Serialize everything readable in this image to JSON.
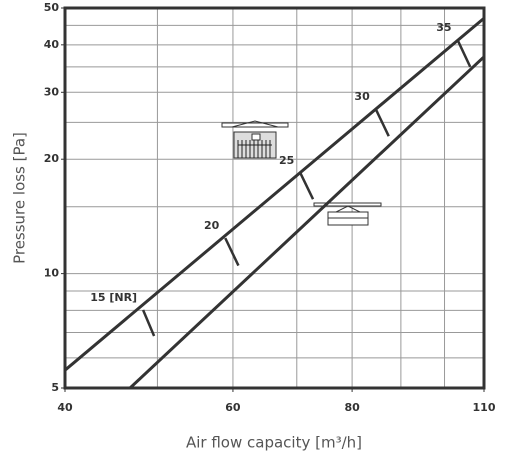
{
  "chart_data": {
    "type": "line",
    "x_label": "Air flow capacity  [m³/h]",
    "y_label": "Pressure loss [Pa]",
    "log_x": true,
    "log_y": true,
    "xlim": [
      40,
      110
    ],
    "ylim": [
      5,
      50
    ],
    "xticks": [
      40,
      60,
      80,
      110
    ],
    "yticks": [
      5,
      10,
      20,
      30,
      40,
      50
    ],
    "xgrid": [
      50,
      60,
      70,
      80,
      90,
      100
    ],
    "ygrid": [
      6,
      7,
      8,
      9,
      10,
      15,
      20,
      25,
      30,
      35,
      40,
      45
    ],
    "grid": true,
    "series": [
      {
        "color": "#333333",
        "x": [
          40,
          110
        ],
        "values": [
          5.57,
          47
        ]
      },
      {
        "color": "#333333",
        "x": [
          46.8,
          110
        ],
        "values": [
          5,
          37.2
        ]
      }
    ],
    "sizes": [
      {
        "label": "15 [NR]",
        "x": [
          48.3,
          49.6
        ],
        "values": [
          8.02,
          6.85
        ]
      },
      {
        "label": "20",
        "x": [
          58.9,
          60.8
        ],
        "values": [
          12.4,
          10.5
        ]
      },
      {
        "label": "25",
        "x": [
          70.6,
          72.8
        ],
        "values": [
          18.4,
          15.7
        ]
      },
      {
        "label": "30",
        "x": [
          84.7,
          87.4
        ],
        "values": [
          27.1,
          23.0
        ]
      },
      {
        "label": "35",
        "x": [
          103.2,
          106.4
        ],
        "values": [
          41.2,
          35.0
        ]
      }
    ]
  }
}
